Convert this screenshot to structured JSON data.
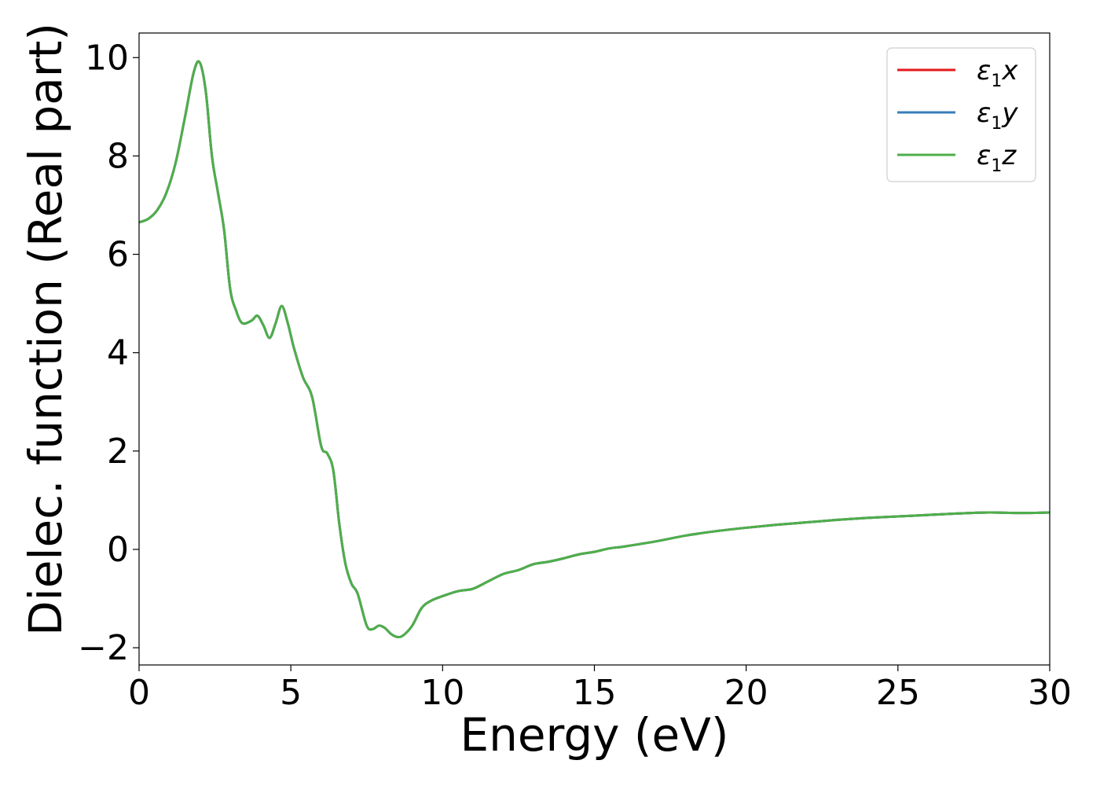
{
  "chart_data": {
    "type": "line",
    "title": "",
    "xlabel": "Energy (eV)",
    "ylabel": "Dielec. function (Real part)",
    "xlim": [
      0,
      30
    ],
    "ylim": [
      -2.35,
      10.5
    ],
    "xticks": [
      0,
      5,
      10,
      15,
      20,
      25,
      30
    ],
    "yticks": [
      -2,
      0,
      2,
      4,
      6,
      8,
      10
    ],
    "xtick_labels": [
      "0",
      "5",
      "10",
      "15",
      "20",
      "25",
      "30"
    ],
    "ytick_labels": [
      "−2",
      "0",
      "2",
      "4",
      "6",
      "8",
      "10"
    ],
    "grid": false,
    "legend_position": "top-right",
    "x": [
      0,
      0.3,
      0.6,
      0.9,
      1.2,
      1.5,
      1.8,
      2.0,
      2.2,
      2.4,
      2.6,
      2.8,
      3.0,
      3.2,
      3.4,
      3.7,
      3.9,
      4.1,
      4.3,
      4.5,
      4.7,
      4.9,
      5.1,
      5.4,
      5.7,
      6.0,
      6.2,
      6.4,
      6.6,
      6.8,
      7.0,
      7.2,
      7.5,
      7.7,
      7.9,
      8.1,
      8.3,
      8.5,
      8.7,
      9.0,
      9.3,
      9.6,
      10.0,
      10.5,
      11.0,
      11.5,
      12.0,
      12.5,
      13.0,
      13.5,
      14.0,
      14.5,
      15.0,
      15.5,
      16.0,
      17.0,
      18.0,
      19.0,
      20.0,
      21.0,
      22.0,
      23.0,
      24.0,
      25.0,
      26.0,
      27.0,
      28.0,
      29.0,
      30.0
    ],
    "series": [
      {
        "name": "x",
        "color": "#e41a1c",
        "values": [
          6.65,
          6.72,
          6.9,
          7.25,
          7.85,
          8.75,
          9.7,
          9.9,
          9.3,
          8.0,
          7.25,
          6.5,
          5.3,
          4.85,
          4.6,
          4.65,
          4.75,
          4.55,
          4.3,
          4.6,
          4.95,
          4.6,
          4.1,
          3.5,
          3.1,
          2.1,
          1.95,
          1.6,
          0.5,
          -0.3,
          -0.7,
          -0.9,
          -1.55,
          -1.62,
          -1.55,
          -1.6,
          -1.72,
          -1.78,
          -1.75,
          -1.55,
          -1.2,
          -1.05,
          -0.95,
          -0.85,
          -0.8,
          -0.65,
          -0.5,
          -0.42,
          -0.3,
          -0.25,
          -0.18,
          -0.1,
          -0.05,
          0.02,
          0.06,
          0.16,
          0.28,
          0.37,
          0.44,
          0.5,
          0.55,
          0.6,
          0.64,
          0.67,
          0.7,
          0.73,
          0.75,
          0.74,
          0.75
        ]
      },
      {
        "name": "y",
        "color": "#377eb8",
        "values": [
          6.65,
          6.72,
          6.9,
          7.25,
          7.85,
          8.75,
          9.7,
          9.9,
          9.3,
          8.0,
          7.25,
          6.5,
          5.3,
          4.85,
          4.6,
          4.65,
          4.75,
          4.55,
          4.3,
          4.6,
          4.95,
          4.6,
          4.1,
          3.5,
          3.1,
          2.1,
          1.95,
          1.6,
          0.5,
          -0.3,
          -0.7,
          -0.9,
          -1.55,
          -1.62,
          -1.55,
          -1.6,
          -1.72,
          -1.78,
          -1.75,
          -1.55,
          -1.2,
          -1.05,
          -0.95,
          -0.85,
          -0.8,
          -0.65,
          -0.5,
          -0.42,
          -0.3,
          -0.25,
          -0.18,
          -0.1,
          -0.05,
          0.02,
          0.06,
          0.16,
          0.28,
          0.37,
          0.44,
          0.5,
          0.55,
          0.6,
          0.64,
          0.67,
          0.7,
          0.73,
          0.75,
          0.74,
          0.75
        ]
      },
      {
        "name": "z",
        "color": "#4daf4a",
        "values": [
          6.65,
          6.72,
          6.9,
          7.25,
          7.85,
          8.75,
          9.7,
          9.9,
          9.3,
          8.0,
          7.25,
          6.5,
          5.3,
          4.85,
          4.6,
          4.65,
          4.75,
          4.55,
          4.3,
          4.6,
          4.95,
          4.6,
          4.1,
          3.5,
          3.1,
          2.1,
          1.95,
          1.6,
          0.5,
          -0.3,
          -0.7,
          -0.9,
          -1.55,
          -1.62,
          -1.55,
          -1.6,
          -1.72,
          -1.78,
          -1.75,
          -1.55,
          -1.2,
          -1.05,
          -0.95,
          -0.85,
          -0.8,
          -0.65,
          -0.5,
          -0.42,
          -0.3,
          -0.25,
          -0.18,
          -0.1,
          -0.05,
          0.02,
          0.06,
          0.16,
          0.28,
          0.37,
          0.44,
          0.5,
          0.55,
          0.6,
          0.64,
          0.67,
          0.7,
          0.73,
          0.75,
          0.74,
          0.75
        ]
      }
    ],
    "legend": [
      {
        "symbol": "ε",
        "subscript": "1",
        "suffix": "x",
        "color": "#e41a1c"
      },
      {
        "symbol": "ε",
        "subscript": "1",
        "suffix": "y",
        "color": "#377eb8"
      },
      {
        "symbol": "ε",
        "subscript": "1",
        "suffix": "z",
        "color": "#4daf4a"
      }
    ]
  }
}
